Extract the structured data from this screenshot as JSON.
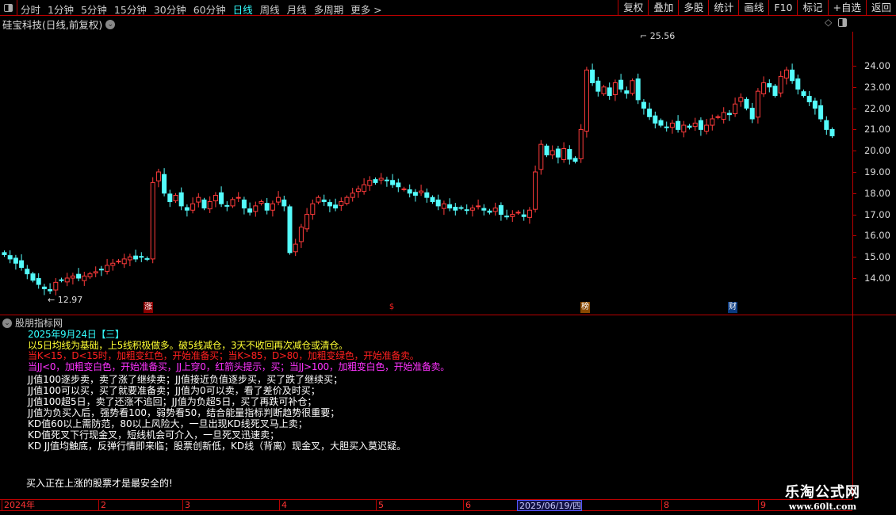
{
  "toolbar": {
    "periods": [
      "分时",
      "1分钟",
      "5分钟",
      "15分钟",
      "30分钟",
      "60分钟",
      "日线",
      "周线",
      "月线",
      "多周期",
      "更多 >"
    ],
    "active_period": "日线",
    "buttons": [
      "复权",
      "叠加",
      "多股",
      "统计",
      "画线",
      "F10",
      "标记",
      "+自选",
      "返回"
    ]
  },
  "stock": {
    "title": "硅宝科技(日线,前复权)"
  },
  "colors": {
    "up": "#ff3b3b",
    "down": "#54fcfc",
    "grid": "#bb0000",
    "accent": "#33ffff"
  },
  "price_axis": {
    "labels": [
      "24.00",
      "23.00",
      "22.00",
      "21.00",
      "20.00",
      "19.00",
      "18.00",
      "17.00",
      "16.00",
      "15.00",
      "14.00"
    ]
  },
  "annotations": {
    "high": "25.56",
    "low": "12.97"
  },
  "event_markers": [
    {
      "label": "涨",
      "color": "#8b0000"
    },
    {
      "label": "$",
      "color": "#000000"
    },
    {
      "label": "榜",
      "color": "#8b4a00"
    },
    {
      "label": "财",
      "color": "#0a3a80"
    }
  ],
  "indicator": {
    "name": "股朋指标网",
    "date_line": "2025年9月24日【三】",
    "lines": [
      {
        "text": "以5日均线为基础，上5线积极做多。破5线减仓，3天不收回再次减仓或清仓。",
        "color": "#ffff33"
      },
      {
        "text": "当K<15，D<15时，加粗变红色，开始准备买；当K>85，D>80，加粗变绿色，开始准备卖。",
        "color": "#ff2020"
      },
      {
        "text": "当JJ<0，加粗变白色，开始准备买，JJ上穿0，红箭头提示，买；当JJ>100，加粗变白色，开始准备卖。",
        "color": "#ff33ff"
      }
    ],
    "notes": [
      "JJ值100逐步卖，卖了涨了继续卖；JJ值接近负值逐步买，买了跌了继续买；",
      "JJ值100可以买，买了就要准备卖；JJ值为0可以卖，看了差价及时买；",
      "JJ值100超5日，卖了还涨不追回；JJ值为负超5日，买了再跌可补仓；",
      "JJ值为负买入后，强势看100，弱势看50，结合能量指标判断趋势很重要；",
      "KD值60以上需防范，80以上风险大，一旦出现KD线死叉马上卖；",
      "KD值死叉下行现金叉，短线机会可介入，一旦死叉迅速卖；",
      "KD JJ值均触底，反弹行情即来临；股票创新低，KD线（背离）现金叉，大胆买入莫迟疑。"
    ],
    "footer": "买入正在上涨的股票才是最安全的!"
  },
  "time_axis": {
    "labels": [
      "2024年",
      "2",
      "3",
      "4",
      "5",
      "6",
      "2025/06/19/四",
      "8",
      "9"
    ]
  },
  "watermark": {
    "name": "乐淘公式网",
    "url": "www.60lt.com"
  },
  "chart_data": {
    "type": "candlestick",
    "ylim": [
      13.0,
      25.6
    ],
    "closes": [
      15.1,
      14.9,
      14.7,
      14.5,
      14.2,
      13.9,
      13.7,
      13.5,
      13.4,
      13.8,
      13.9,
      14.0,
      14.1,
      14.0,
      14.1,
      14.2,
      14.3,
      14.4,
      14.6,
      14.7,
      14.8,
      14.9,
      15.0,
      14.9,
      15.0,
      14.9,
      18.5,
      19.0,
      18.0,
      17.6,
      17.9,
      17.4,
      17.2,
      17.5,
      17.8,
      17.3,
      17.6,
      17.9,
      17.5,
      17.4,
      17.7,
      17.8,
      17.3,
      17.1,
      17.4,
      17.6,
      17.2,
      17.5,
      17.8,
      17.4,
      15.2,
      15.6,
      16.4,
      17.0,
      17.5,
      17.8,
      17.6,
      17.4,
      17.3,
      17.6,
      17.8,
      18.0,
      18.2,
      18.4,
      18.6,
      18.5,
      18.7,
      18.6,
      18.4,
      18.3,
      18.2,
      18.0,
      17.9,
      18.1,
      17.8,
      17.6,
      17.4,
      17.5,
      17.3,
      17.2,
      17.3,
      17.2,
      17.3,
      17.4,
      17.2,
      17.1,
      17.3,
      17.0,
      16.9,
      17.0,
      17.1,
      16.9,
      17.2,
      19.0,
      20.3,
      19.8,
      20.0,
      19.7,
      20.1,
      19.6,
      19.5,
      21.0,
      23.8,
      23.2,
      22.8,
      23.0,
      22.6,
      23.2,
      22.9,
      22.7,
      23.3,
      22.4,
      22.0,
      21.6,
      21.3,
      21.2,
      21.1,
      21.3,
      21.0,
      21.2,
      21.1,
      21.3,
      21.0,
      21.2,
      21.5,
      21.6,
      21.8,
      21.7,
      22.2,
      22.5,
      22.0,
      21.5,
      22.8,
      23.2,
      23.0,
      22.6,
      23.5,
      23.8,
      23.3,
      22.9,
      22.6,
      22.3,
      22.0,
      21.5,
      21.0,
      20.7
    ]
  }
}
